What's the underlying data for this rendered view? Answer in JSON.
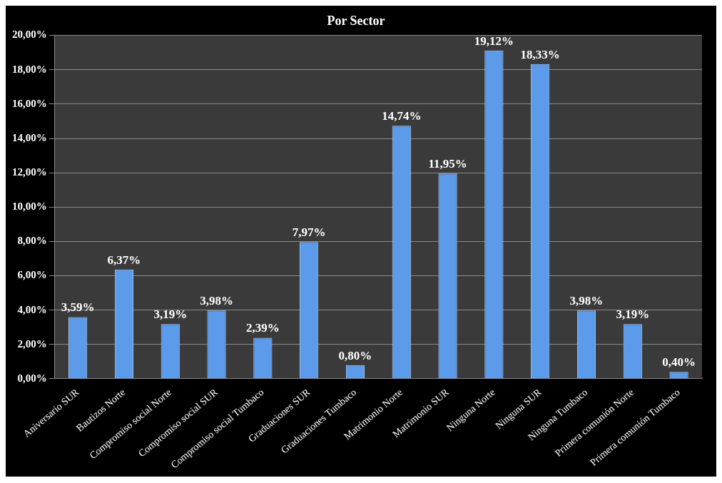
{
  "chart_data": {
    "type": "bar",
    "title": "Por Sector",
    "categories": [
      "Aniversario SUR",
      "Bautizos Norte",
      "Compromiso social Norte",
      "Compromiso social SUR",
      "Compromiso social Tumbaco",
      "Graduaciones SUR",
      "Graduaciones Tumbaco",
      "Matrimonio Norte",
      "Matrimonio SUR",
      "Ninguna Norte",
      "Ninguna SUR",
      "Ninguna Tumbaco",
      "Primera comunión Norte",
      "Primera comunión Tumbaco"
    ],
    "values": [
      3.59,
      6.37,
      3.19,
      3.98,
      2.39,
      7.97,
      0.8,
      14.74,
      11.95,
      19.12,
      18.33,
      3.98,
      3.19,
      0.4
    ],
    "value_labels": [
      "3,59%",
      "6,37%",
      "3,19%",
      "3,98%",
      "2,39%",
      "7,97%",
      "0,80%",
      "14,74%",
      "11,95%",
      "19,12%",
      "18,33%",
      "3,98%",
      "3,19%",
      "0,40%"
    ],
    "color": "#5b9bea",
    "ylim": [
      0,
      20
    ],
    "yticks": [
      {
        "value": 0,
        "label": "0,00%"
      },
      {
        "value": 2,
        "label": "2,00%"
      },
      {
        "value": 4,
        "label": "4,00%"
      },
      {
        "value": 6,
        "label": "6,00%"
      },
      {
        "value": 8,
        "label": "8,00%"
      },
      {
        "value": 10,
        "label": "10,00%"
      },
      {
        "value": 12,
        "label": "12,00%"
      },
      {
        "value": 14,
        "label": "14,00%"
      },
      {
        "value": 16,
        "label": "16,00%"
      },
      {
        "value": 18,
        "label": "18,00%"
      },
      {
        "value": 20,
        "label": "20,00%"
      }
    ],
    "grid": "y",
    "legend": false
  }
}
